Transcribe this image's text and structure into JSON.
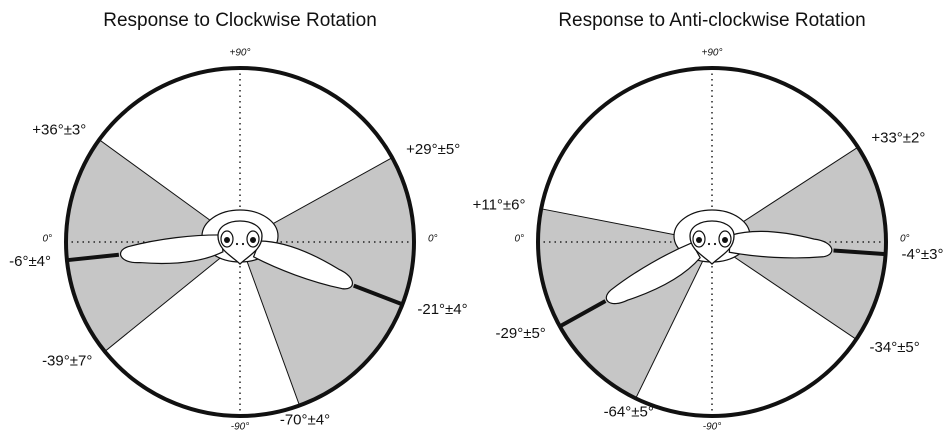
{
  "panels": [
    {
      "title": "Response to Clockwise Rotation",
      "axis_labels": {
        "top": "+90°",
        "bottom": "-90°",
        "left": "0°",
        "right": "0°"
      },
      "left": {
        "upper": {
          "angle": 36,
          "label": "+36°±3°"
        },
        "lower": {
          "angle": -39,
          "label": "-39°±7°"
        },
        "limb": {
          "angle": -6,
          "label": "-6°±4°"
        }
      },
      "right": {
        "upper": {
          "angle": 29,
          "label": "+29°±5°"
        },
        "lower": {
          "angle": -70,
          "label": "-70°±4°"
        },
        "limb": {
          "angle": -21,
          "label": "-21°±4°"
        }
      }
    },
    {
      "title": "Response to Anti-clockwise Rotation",
      "axis_labels": {
        "top": "+90°",
        "bottom": "-90°",
        "left": "0°",
        "right": "0°"
      },
      "left": {
        "upper": {
          "angle": 11,
          "label": "+11°±6°"
        },
        "lower": {
          "angle": -64,
          "label": "-64°±5°"
        },
        "limb": {
          "angle": -29,
          "label": "-29°±5°"
        }
      },
      "right": {
        "upper": {
          "angle": 33,
          "label": "+33°±2°"
        },
        "lower": {
          "angle": -34,
          "label": "-34°±5°"
        },
        "limb": {
          "angle": -4,
          "label": "-4°±3°"
        }
      }
    }
  ]
}
